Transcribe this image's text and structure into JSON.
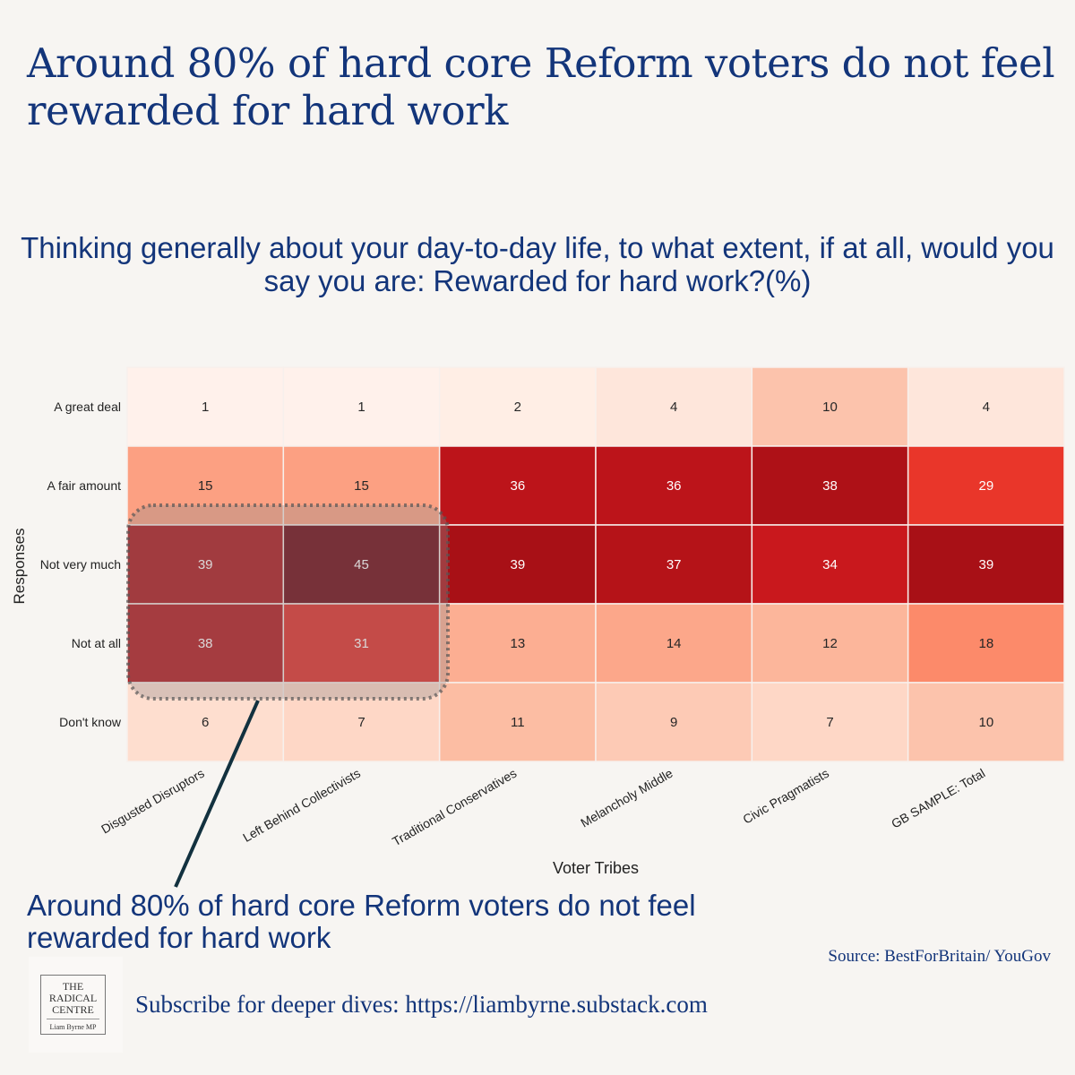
{
  "title": "Around 80% of hard core Reform voters do not feel rewarded for hard work",
  "chart_data": {
    "type": "heatmap",
    "title": "Thinking generally about your day-to-day life, to what extent, if at all, would you say you are: Rewarded for hard work?(%)",
    "xlabel": "Voter Tribes",
    "ylabel": "Responses",
    "x": [
      "Disgusted Disruptors",
      "Left Behind Collectivists",
      "Traditional Conservatives",
      "Melancholy Middle",
      "Civic Pragmatists",
      "GB SAMPLE: Total"
    ],
    "y": [
      "A great deal",
      "A fair amount",
      "Not very much",
      "Not at all",
      "Don't know"
    ],
    "values": [
      [
        1,
        1,
        2,
        4,
        10,
        4
      ],
      [
        15,
        15,
        36,
        36,
        38,
        29
      ],
      [
        39,
        45,
        39,
        37,
        34,
        39
      ],
      [
        38,
        31,
        13,
        14,
        12,
        18
      ],
      [
        6,
        7,
        11,
        9,
        7,
        10
      ]
    ],
    "colormap": "Reds",
    "vrange": [
      0,
      45
    ],
    "highlight": {
      "rows": [
        "Not very much",
        "Not at all"
      ],
      "columns": [
        "Disgusted Disruptors",
        "Left Behind Collectivists"
      ]
    }
  },
  "callout": "Around 80% of hard core Reform voters do not feel rewarded for hard work",
  "source": "Source: BestForBritain/ YouGov",
  "logo": {
    "line1": "THE",
    "line2": "RADICAL",
    "line3": "CENTRE",
    "line4": "Liam Byrne MP"
  },
  "subscribe": "Subscribe for deeper dives: https://liambyrne.substack.com"
}
